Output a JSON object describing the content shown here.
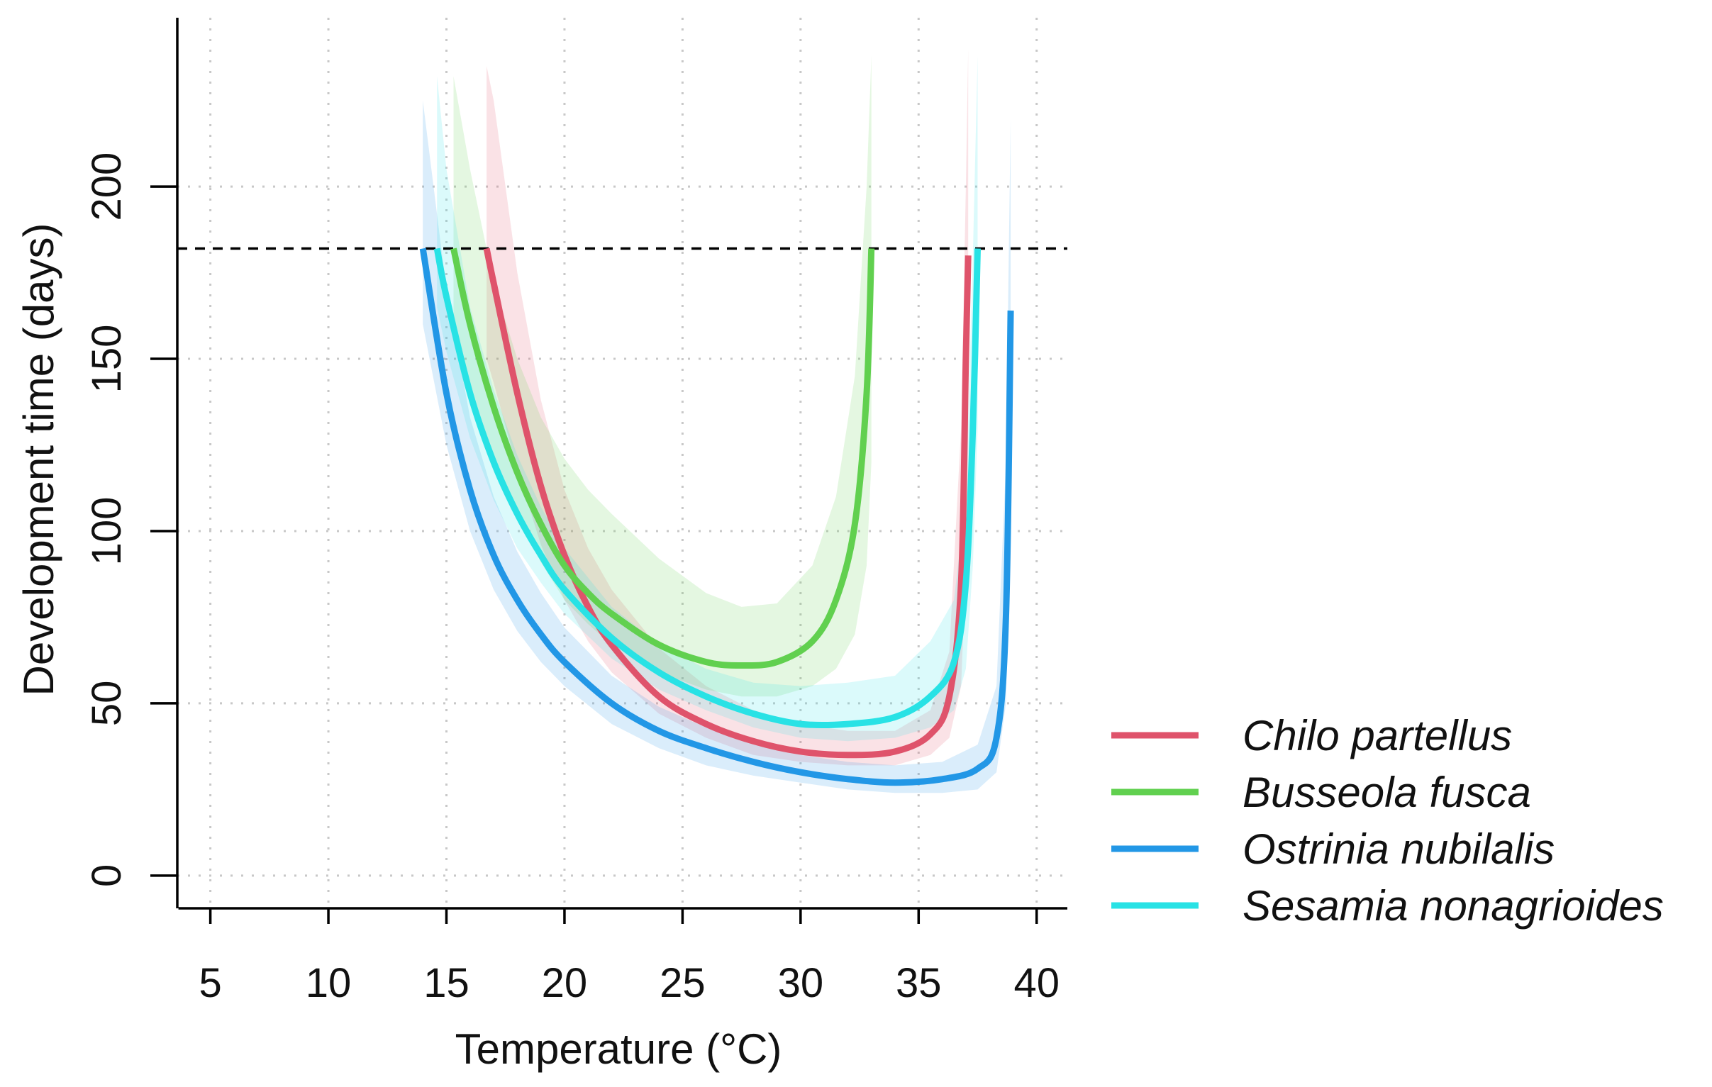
{
  "chart_data": {
    "type": "line",
    "title": "",
    "xlabel": "Temperature (°C)",
    "ylabel": "Development time (days)",
    "xlim": [
      3.6,
      41.3
    ],
    "ylim": [
      -9.5,
      249
    ],
    "xticks": [
      5,
      10,
      15,
      20,
      25,
      30,
      35,
      40
    ],
    "xtick_labels": [
      "5",
      "10",
      "15",
      "20",
      "25",
      "30",
      "35",
      "40"
    ],
    "yticks": [
      0,
      50,
      100,
      150,
      200
    ],
    "ytick_labels": [
      "0",
      "50",
      "100",
      "150",
      "200"
    ],
    "grid": true,
    "reference_line": {
      "y": 182,
      "style": "dashed",
      "color": "#000000"
    },
    "legend_position": "right",
    "series": [
      {
        "name": "Chilo partellus",
        "color": "#DF536B",
        "x": [
          16.7,
          17.0,
          18.0,
          19.0,
          20.0,
          21.0,
          22.0,
          24.0,
          26.0,
          28.0,
          30.0,
          32.0,
          34.0,
          35.5,
          36.3,
          36.8,
          37.0,
          37.1
        ],
        "y": [
          182,
          172,
          140,
          113,
          93,
          78,
          67,
          52,
          44,
          39,
          36,
          35,
          36,
          41,
          52,
          85,
          150,
          180
        ],
        "lower": [
          150,
          143,
          118,
          96,
          80,
          68,
          59,
          47,
          40,
          35,
          33,
          32,
          32,
          35,
          40,
          55,
          90,
          130
        ],
        "upper": [
          235,
          225,
          175,
          138,
          112,
          95,
          83,
          66,
          55,
          48,
          44,
          42,
          42,
          48,
          65,
          130,
          200,
          240
        ]
      },
      {
        "name": "Busseola fusca",
        "color": "#61D04F",
        "x": [
          15.3,
          16.0,
          17.0,
          18.0,
          19.0,
          20.0,
          21.0,
          22.0,
          24.0,
          26.0,
          27.5,
          29.0,
          30.5,
          31.5,
          32.3,
          32.8,
          33.0
        ],
        "y": [
          182,
          160,
          136,
          117,
          102,
          90,
          82,
          76,
          67,
          62,
          61,
          62,
          68,
          80,
          102,
          140,
          182
        ],
        "lower": [
          155,
          140,
          120,
          104,
          91,
          80,
          73,
          67,
          59,
          54,
          52,
          52,
          55,
          60,
          70,
          90,
          120
        ],
        "upper": [
          232,
          205,
          172,
          150,
          133,
          121,
          112,
          105,
          92,
          82,
          78,
          79,
          90,
          110,
          145,
          200,
          238
        ]
      },
      {
        "name": "Ostrinia nubilalis",
        "color": "#2297E6",
        "x": [
          14.0,
          15.0,
          16.0,
          17.0,
          18.0,
          19.0,
          20.0,
          22.0,
          24.0,
          26.0,
          28.0,
          30.0,
          32.0,
          34.0,
          36.0,
          37.5,
          38.3,
          38.7,
          38.9
        ],
        "y": [
          182,
          140,
          112,
          93,
          80,
          70,
          62,
          50,
          42,
          37,
          33,
          30,
          28,
          27,
          28,
          31,
          40,
          75,
          164
        ],
        "lower": [
          160,
          125,
          100,
          83,
          71,
          62,
          55,
          44,
          37,
          32,
          29,
          27,
          25,
          24,
          24,
          25,
          30,
          50,
          110
        ],
        "upper": [
          225,
          170,
          133,
          110,
          94,
          82,
          72,
          58,
          49,
          43,
          38,
          35,
          33,
          32,
          33,
          38,
          55,
          120,
          220
        ]
      },
      {
        "name": "Sesamia nonagrioides",
        "color": "#28E2E5",
        "x": [
          14.6,
          15.0,
          16.0,
          17.0,
          18.0,
          19.0,
          20.0,
          22.0,
          24.0,
          26.0,
          28.0,
          30.0,
          32.0,
          34.0,
          35.5,
          36.5,
          37.0,
          37.3,
          37.5
        ],
        "y": [
          182,
          168,
          140,
          120,
          105,
          93,
          83,
          69,
          59,
          52,
          47,
          44,
          44,
          46,
          52,
          62,
          85,
          130,
          182
        ],
        "lower": [
          165,
          152,
          127,
          109,
          95,
          85,
          76,
          63,
          54,
          48,
          43,
          40,
          39,
          40,
          43,
          48,
          60,
          90,
          130
        ],
        "upper": [
          232,
          205,
          165,
          141,
          122,
          107,
          95,
          78,
          67,
          60,
          56,
          55,
          56,
          58,
          68,
          80,
          110,
          180,
          238
        ]
      }
    ]
  }
}
